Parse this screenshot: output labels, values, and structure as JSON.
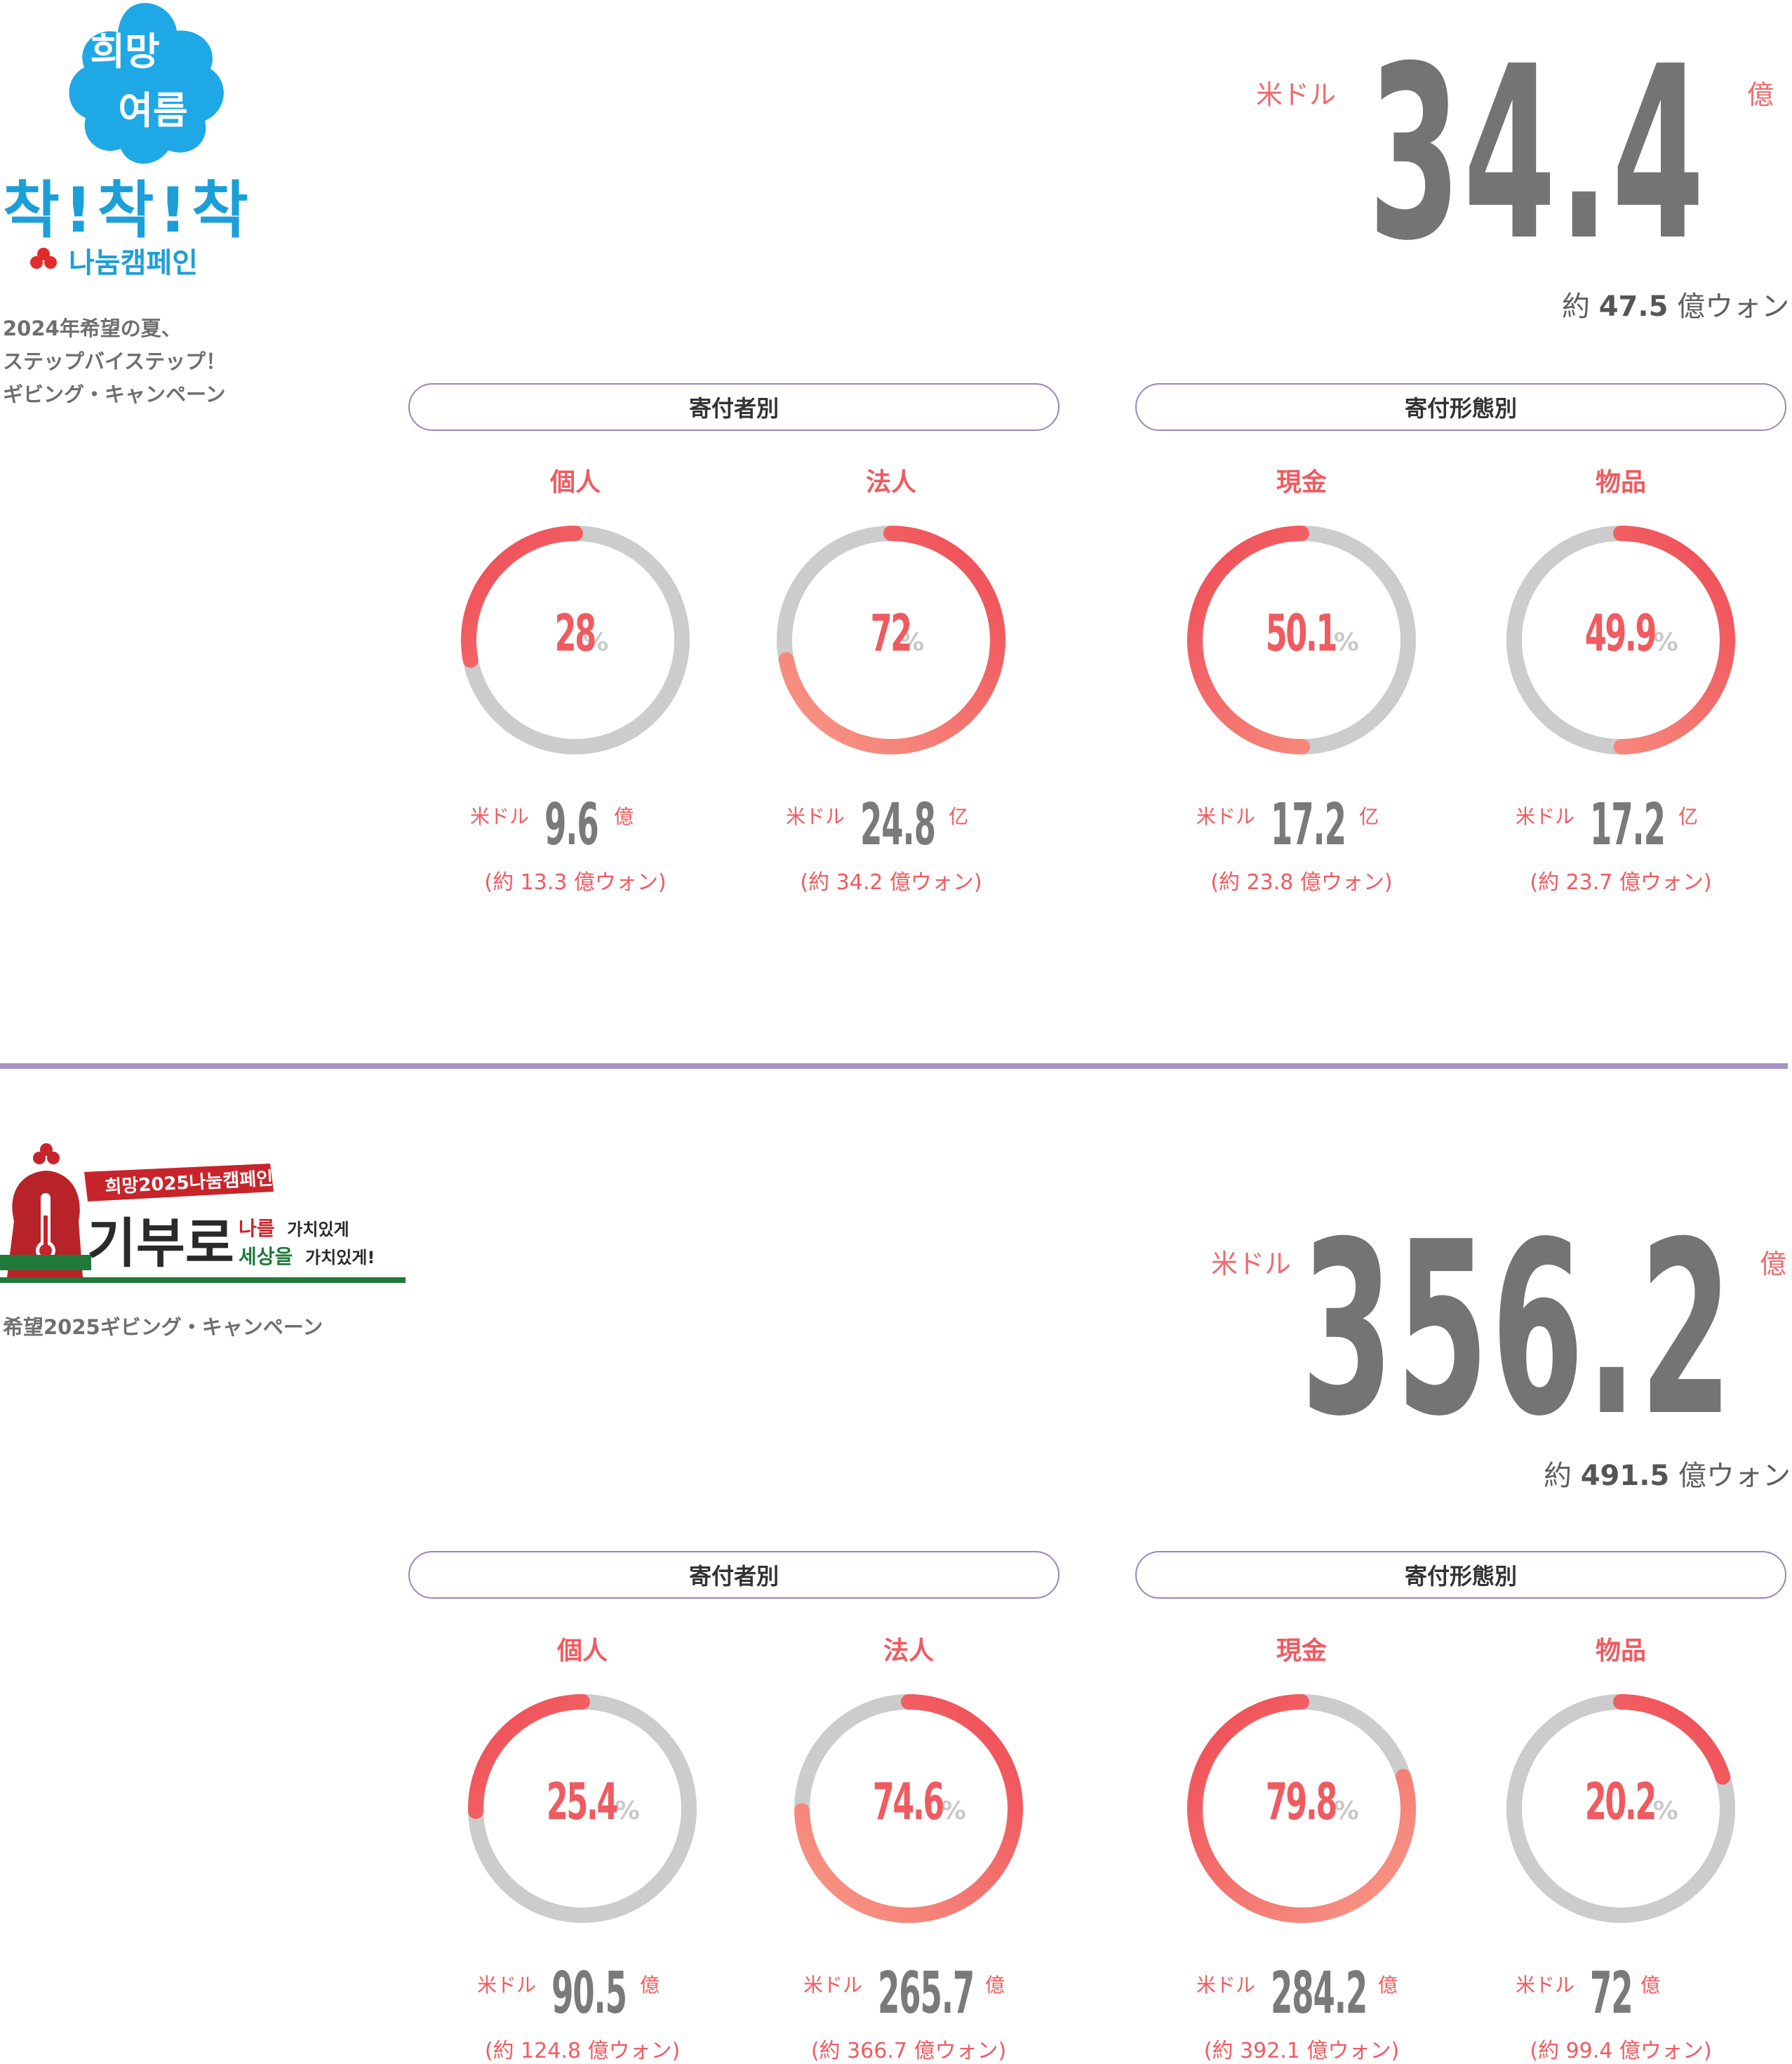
{
  "colors": {
    "accent": "#ef5b60",
    "ring_bg": "#cccccc",
    "divider": "#a593c6",
    "big_num": "#747474"
  },
  "sections": [
    {
      "logo": {
        "line1": "희망",
        "line2": "여름",
        "line3": "착!착!착",
        "line4": "나눔캠페인"
      },
      "subtitle": "2024年希望の夏、\nステップバイステップ！\nギビング・キャンペーン",
      "total": {
        "currency": "米ドル",
        "value": "34.4",
        "unit": "億",
        "krw_prefix": "約",
        "krw_value": "47.5",
        "krw_suffix": "億ウォン"
      },
      "groups": [
        {
          "title": "寄付者別",
          "items": [
            {
              "label": "個人",
              "percent": 28,
              "percent_text": "28",
              "currency": "米ドル",
              "amount": "9.6",
              "unit": "億",
              "krw": "(約 13.3 億ウォン)"
            },
            {
              "label": "法人",
              "percent": 72,
              "percent_text": "72",
              "currency": "米ドル",
              "amount": "24.8",
              "unit": "亿",
              "krw": "(約 34.2 億ウォン)"
            }
          ]
        },
        {
          "title": "寄付形態別",
          "items": [
            {
              "label": "現金",
              "percent": 50.1,
              "percent_text": "50.1",
              "currency": "米ドル",
              "amount": "17.2",
              "unit": "亿",
              "krw": "(約 23.8 億ウォン)"
            },
            {
              "label": "物品",
              "percent": 49.9,
              "percent_text": "49.9",
              "currency": "米ドル",
              "amount": "17.2",
              "unit": "亿",
              "krw": "(約 23.7 億ウォン)"
            }
          ]
        }
      ]
    },
    {
      "logo": {
        "banner": "희망2025나눔캠페인",
        "main": "기부로",
        "tag1a": "나를",
        "tag1b": "가치있게",
        "tag2a": "세상을",
        "tag2b": "가치있게!"
      },
      "subtitle": "希望2025ギビング・キャンペーン",
      "total": {
        "currency": "米ドル",
        "value": "356.2",
        "unit": "億",
        "krw_prefix": "約",
        "krw_value": "491.5",
        "krw_suffix": "億ウォン"
      },
      "groups": [
        {
          "title": "寄付者別",
          "items": [
            {
              "label": "個人",
              "percent": 25.4,
              "percent_text": "25.4",
              "currency": "米ドル",
              "amount": "90.5",
              "unit": "億",
              "krw": "(約 124.8 億ウォン)"
            },
            {
              "label": "法人",
              "percent": 74.6,
              "percent_text": "74.6",
              "currency": "米ドル",
              "amount": "265.7",
              "unit": "億",
              "krw": "(約 366.7 億ウォン)"
            }
          ]
        },
        {
          "title": "寄付形態別",
          "items": [
            {
              "label": "現金",
              "percent": 79.8,
              "percent_text": "79.8",
              "currency": "米ドル",
              "amount": "284.2",
              "unit": "億",
              "krw": "(約 392.1 億ウォン)"
            },
            {
              "label": "物品",
              "percent": 20.2,
              "percent_text": "20.2",
              "currency": "米ドル",
              "amount": "72",
              "unit": "億",
              "krw": "(約 99.4 億ウォン)"
            }
          ]
        }
      ]
    }
  ]
}
